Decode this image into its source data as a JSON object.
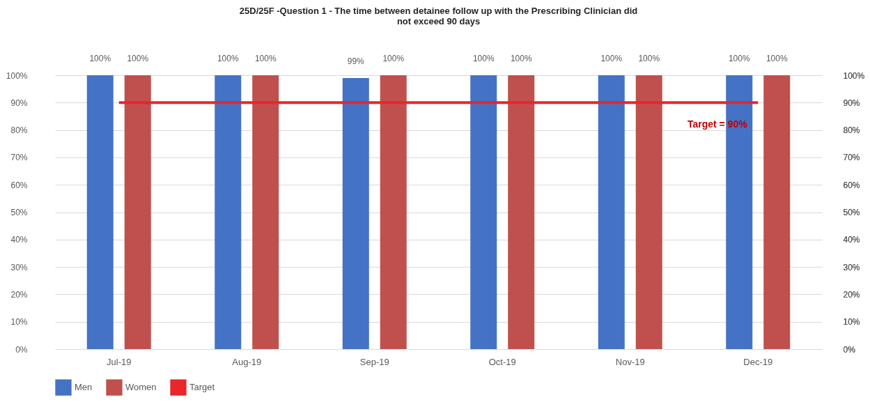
{
  "chart_data": {
    "type": "bar",
    "title": "25D/25F -Question 1 - The time between detainee follow up with the Prescribing Clinician did not exceed 90 days",
    "categories": [
      "Jul-19",
      "Aug-19",
      "Sep-19",
      "Oct-19",
      "Nov-19",
      "Dec-19"
    ],
    "series": [
      {
        "name": "Men",
        "color": "#4472c4",
        "values": [
          100,
          100,
          99,
          100,
          100,
          100
        ],
        "value_labels": [
          "100%",
          "100%",
          "99%",
          "100%",
          "100%",
          "100%"
        ]
      },
      {
        "name": "Women",
        "color": "#c0504d",
        "values": [
          100,
          100,
          100,
          100,
          100,
          100
        ],
        "value_labels": [
          "100%",
          "100%",
          "100%",
          "100%",
          "100%",
          "100%"
        ]
      },
      {
        "name": "Target",
        "type": "line",
        "color": "#e8262b",
        "values": [
          90,
          90,
          90,
          90,
          90,
          90
        ]
      }
    ],
    "ylim": [
      0,
      100
    ],
    "yticks": [
      {
        "value": 0,
        "label": "0%"
      },
      {
        "value": 10,
        "label": "10%"
      },
      {
        "value": 20,
        "label": "20%"
      },
      {
        "value": 30,
        "label": "30%"
      },
      {
        "value": 40,
        "label": "40%"
      },
      {
        "value": 50,
        "label": "50%"
      },
      {
        "value": 60,
        "label": "60%"
      },
      {
        "value": 70,
        "label": "70%"
      },
      {
        "value": 80,
        "label": "80%"
      },
      {
        "value": 90,
        "label": "90%"
      },
      {
        "value": 100,
        "label": "100%"
      }
    ],
    "y2lim": [
      0,
      100
    ],
    "y2ticks": [
      {
        "value": 0,
        "label": "0%"
      },
      {
        "value": 10,
        "label": "10%"
      },
      {
        "value": 20,
        "label": "20%"
      },
      {
        "value": 30,
        "label": "30%"
      },
      {
        "value": 40,
        "label": "40%"
      },
      {
        "value": 50,
        "label": "50%"
      },
      {
        "value": 60,
        "label": "60%"
      },
      {
        "value": 70,
        "label": "70%"
      },
      {
        "value": 80,
        "label": "80%"
      },
      {
        "value": 90,
        "label": "90%"
      },
      {
        "value": 100,
        "label": "100%"
      }
    ],
    "annotations": [
      "Target = 90%"
    ],
    "grid": "y",
    "legend": "bottom"
  }
}
